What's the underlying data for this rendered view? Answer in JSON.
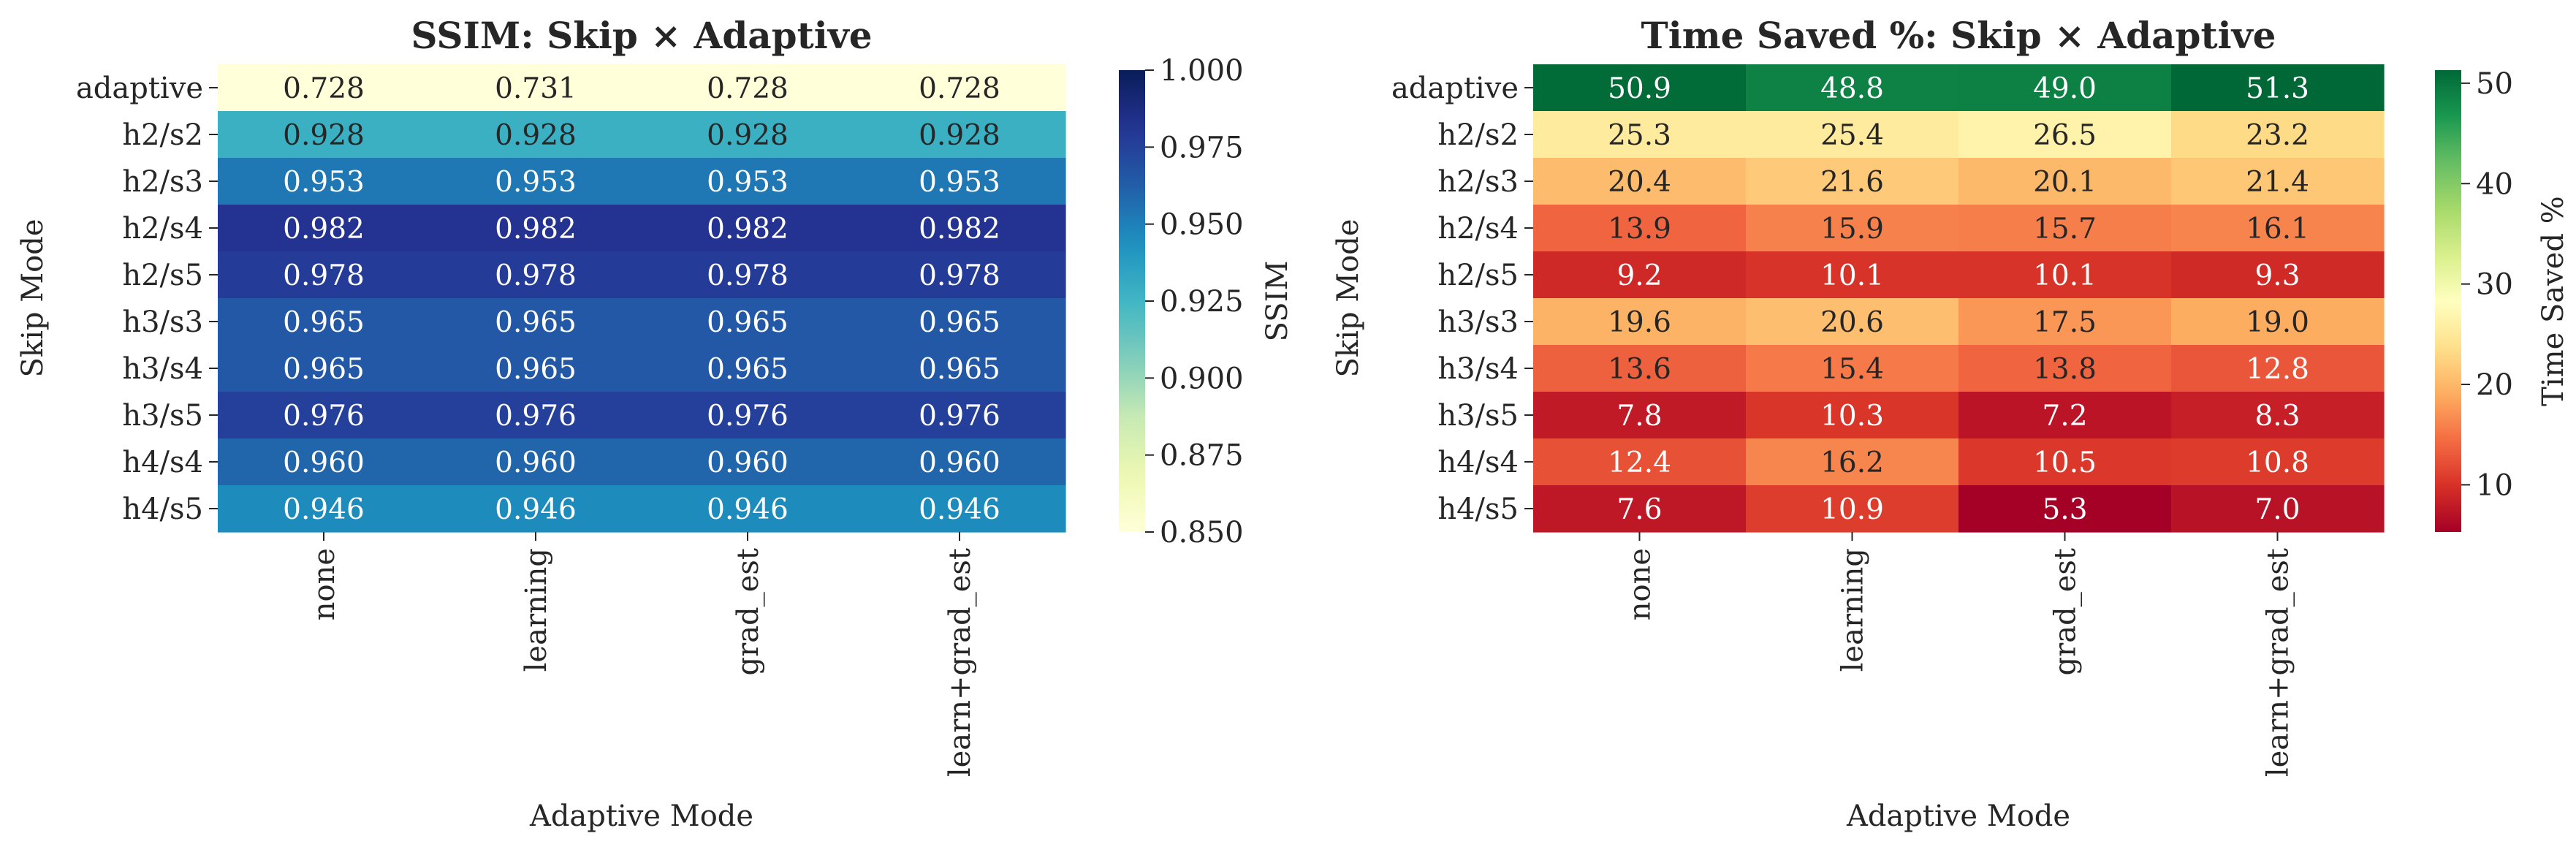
{
  "chart_data": [
    {
      "type": "heatmap",
      "title": "SSIM: Skip × Adaptive",
      "xlabel": "Adaptive Mode",
      "ylabel": "Skip Mode",
      "x": [
        "none",
        "learning",
        "grad_est",
        "learn+grad_est"
      ],
      "y": [
        "adaptive",
        "h2/s2",
        "h2/s3",
        "h2/s4",
        "h2/s5",
        "h3/s3",
        "h3/s4",
        "h3/s5",
        "h4/s4",
        "h4/s5"
      ],
      "values": [
        [
          0.728,
          0.731,
          0.728,
          0.728
        ],
        [
          0.928,
          0.928,
          0.928,
          0.928
        ],
        [
          0.953,
          0.953,
          0.953,
          0.953
        ],
        [
          0.982,
          0.982,
          0.982,
          0.982
        ],
        [
          0.978,
          0.978,
          0.978,
          0.978
        ],
        [
          0.965,
          0.965,
          0.965,
          0.965
        ],
        [
          0.965,
          0.965,
          0.965,
          0.965
        ],
        [
          0.976,
          0.976,
          0.976,
          0.976
        ],
        [
          0.96,
          0.96,
          0.96,
          0.96
        ],
        [
          0.946,
          0.946,
          0.946,
          0.946
        ]
      ],
      "value_format": 3,
      "colormap": "YlGnBu",
      "vmin": 0.85,
      "vmax": 1.0,
      "colorbar_label": "SSIM",
      "colorbar_ticks": [
        "0.850",
        "0.875",
        "0.900",
        "0.925",
        "0.950",
        "0.975",
        "1.000"
      ]
    },
    {
      "type": "heatmap",
      "title": "Time Saved %: Skip × Adaptive",
      "xlabel": "Adaptive Mode",
      "ylabel": "Skip Mode",
      "x": [
        "none",
        "learning",
        "grad_est",
        "learn+grad_est"
      ],
      "y": [
        "adaptive",
        "h2/s2",
        "h2/s3",
        "h2/s4",
        "h2/s5",
        "h3/s3",
        "h3/s4",
        "h3/s5",
        "h4/s4",
        "h4/s5"
      ],
      "values": [
        [
          50.9,
          48.8,
          49.0,
          51.3
        ],
        [
          25.3,
          25.4,
          26.5,
          23.2
        ],
        [
          20.4,
          21.6,
          20.1,
          21.4
        ],
        [
          13.9,
          15.9,
          15.7,
          16.1
        ],
        [
          9.2,
          10.1,
          10.1,
          9.3
        ],
        [
          19.6,
          20.6,
          17.5,
          19.0
        ],
        [
          13.6,
          15.4,
          13.8,
          12.8
        ],
        [
          7.8,
          10.3,
          7.2,
          8.3
        ],
        [
          12.4,
          16.2,
          10.5,
          10.8
        ],
        [
          7.6,
          10.9,
          5.3,
          7.0
        ]
      ],
      "value_format": 1,
      "colormap": "RdYlGn",
      "vmin": 5.3,
      "vmax": 51.3,
      "colorbar_label": "Time Saved %",
      "colorbar_ticks": [
        "10",
        "20",
        "30",
        "40",
        "50"
      ]
    }
  ]
}
